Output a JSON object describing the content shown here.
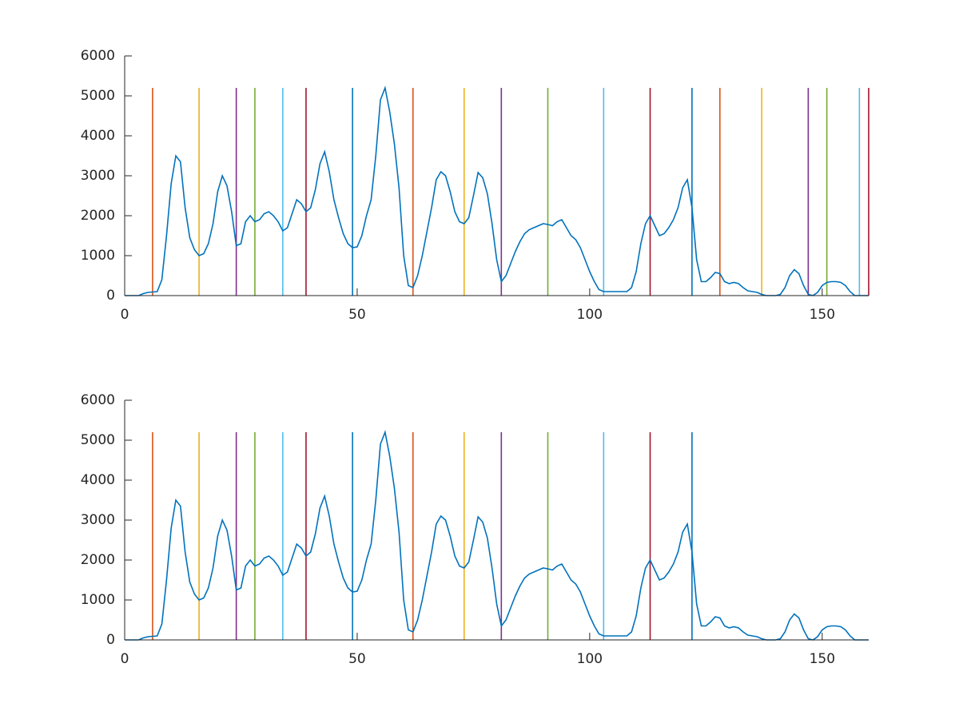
{
  "chart_data": [
    {
      "type": "line",
      "x": [
        0,
        1,
        2,
        3,
        4,
        5,
        6,
        7,
        8,
        9,
        10,
        11,
        12,
        13,
        14,
        15,
        16,
        17,
        18,
        19,
        20,
        21,
        22,
        23,
        24,
        25,
        26,
        27,
        28,
        29,
        30,
        31,
        32,
        33,
        34,
        35,
        36,
        37,
        38,
        39,
        40,
        41,
        42,
        43,
        44,
        45,
        46,
        47,
        48,
        49,
        50,
        51,
        52,
        53,
        54,
        55,
        56,
        57,
        58,
        59,
        60,
        61,
        62,
        63,
        64,
        65,
        66,
        67,
        68,
        69,
        70,
        71,
        72,
        73,
        74,
        75,
        76,
        77,
        78,
        79,
        80,
        81,
        82,
        83,
        84,
        85,
        86,
        87,
        88,
        89,
        90,
        91,
        92,
        93,
        94,
        95,
        96,
        97,
        98,
        99,
        100,
        101,
        102,
        103,
        104,
        105,
        106,
        107,
        108,
        109,
        110,
        111,
        112,
        113,
        114,
        115,
        116,
        117,
        118,
        119,
        120,
        121,
        122,
        123,
        124,
        125,
        126,
        127,
        128,
        129,
        130,
        131,
        132,
        133,
        134,
        135,
        136,
        137,
        138,
        139,
        140,
        141,
        142,
        143,
        144,
        145,
        146,
        147,
        148,
        149,
        150,
        151,
        152,
        153,
        154,
        155,
        156,
        157,
        158,
        159,
        160
      ],
      "series": [
        {
          "color": "#0072BD",
          "values": [
            0,
            0,
            0,
            0,
            50,
            80,
            90,
            100,
            400,
            1500,
            2800,
            3500,
            3350,
            2200,
            1450,
            1150,
            1000,
            1050,
            1300,
            1800,
            2600,
            3000,
            2750,
            2100,
            1250,
            1300,
            1850,
            2000,
            1850,
            1900,
            2050,
            2100,
            2000,
            1850,
            1620,
            1700,
            2050,
            2400,
            2300,
            2100,
            2200,
            2650,
            3300,
            3600,
            3100,
            2400,
            1950,
            1550,
            1300,
            1200,
            1220,
            1500,
            2000,
            2400,
            3500,
            4900,
            5200,
            4600,
            3800,
            2700,
            1000,
            250,
            200,
            500,
            1000,
            1600,
            2200,
            2900,
            3100,
            3000,
            2600,
            2100,
            1850,
            1800,
            1950,
            2500,
            3080,
            2950,
            2550,
            1800,
            900,
            350,
            500,
            800,
            1100,
            1350,
            1550,
            1650,
            1700,
            1750,
            1800,
            1780,
            1750,
            1850,
            1900,
            1700,
            1500,
            1400,
            1200,
            900,
            600,
            350,
            150,
            100,
            100,
            100,
            100,
            100,
            100,
            200,
            600,
            1300,
            1800,
            2000,
            1750,
            1500,
            1550,
            1700,
            1900,
            2200,
            2700,
            2900,
            2200,
            900,
            350,
            350,
            450,
            580,
            550,
            350,
            300,
            330,
            300,
            200,
            120,
            100,
            80,
            30,
            0,
            0,
            0,
            30,
            200,
            500,
            650,
            550,
            250,
            30,
            0,
            80,
            250,
            330,
            350,
            350,
            330,
            250,
            100,
            0,
            0,
            0,
            0
          ]
        }
      ],
      "vlines": {
        "x": [
          6,
          16,
          24,
          28,
          34,
          39,
          49,
          62,
          73,
          81,
          91,
          103,
          113,
          122,
          128,
          137,
          147,
          151,
          158,
          160
        ],
        "colors": [
          "#D95319",
          "#EDB120",
          "#7E2F8E",
          "#77AC30",
          "#4DBEEE",
          "#A2142F",
          "#0072BD",
          "#D95319",
          "#EDB120",
          "#7E2F8E",
          "#77AC30",
          "#4DBEEE",
          "#A2142F",
          "#0072BD",
          "#D95319",
          "#EDB120",
          "#7E2F8E",
          "#77AC30",
          "#4DBEEE",
          "#A2142F"
        ],
        "y_range": [
          0,
          5200
        ]
      },
      "xlim": [
        0,
        160
      ],
      "xticks": [
        0,
        50,
        100,
        150
      ],
      "ylim": [
        0,
        6000
      ],
      "yticks": [
        0,
        1000,
        2000,
        3000,
        4000,
        5000,
        6000
      ]
    },
    {
      "type": "line",
      "x": [
        0,
        1,
        2,
        3,
        4,
        5,
        6,
        7,
        8,
        9,
        10,
        11,
        12,
        13,
        14,
        15,
        16,
        17,
        18,
        19,
        20,
        21,
        22,
        23,
        24,
        25,
        26,
        27,
        28,
        29,
        30,
        31,
        32,
        33,
        34,
        35,
        36,
        37,
        38,
        39,
        40,
        41,
        42,
        43,
        44,
        45,
        46,
        47,
        48,
        49,
        50,
        51,
        52,
        53,
        54,
        55,
        56,
        57,
        58,
        59,
        60,
        61,
        62,
        63,
        64,
        65,
        66,
        67,
        68,
        69,
        70,
        71,
        72,
        73,
        74,
        75,
        76,
        77,
        78,
        79,
        80,
        81,
        82,
        83,
        84,
        85,
        86,
        87,
        88,
        89,
        90,
        91,
        92,
        93,
        94,
        95,
        96,
        97,
        98,
        99,
        100,
        101,
        102,
        103,
        104,
        105,
        106,
        107,
        108,
        109,
        110,
        111,
        112,
        113,
        114,
        115,
        116,
        117,
        118,
        119,
        120,
        121,
        122,
        123,
        124,
        125,
        126,
        127,
        128,
        129,
        130,
        131,
        132,
        133,
        134,
        135,
        136,
        137,
        138,
        139,
        140,
        141,
        142,
        143,
        144,
        145,
        146,
        147,
        148,
        149,
        150,
        151,
        152,
        153,
        154,
        155,
        156,
        157,
        158,
        159,
        160
      ],
      "series": [
        {
          "color": "#0072BD",
          "values": [
            0,
            0,
            0,
            0,
            50,
            80,
            90,
            100,
            400,
            1500,
            2800,
            3500,
            3350,
            2200,
            1450,
            1150,
            1000,
            1050,
            1300,
            1800,
            2600,
            3000,
            2750,
            2100,
            1250,
            1300,
            1850,
            2000,
            1850,
            1900,
            2050,
            2100,
            2000,
            1850,
            1620,
            1700,
            2050,
            2400,
            2300,
            2100,
            2200,
            2650,
            3300,
            3600,
            3100,
            2400,
            1950,
            1550,
            1300,
            1200,
            1220,
            1500,
            2000,
            2400,
            3500,
            4900,
            5200,
            4600,
            3800,
            2700,
            1000,
            250,
            200,
            500,
            1000,
            1600,
            2200,
            2900,
            3100,
            3000,
            2600,
            2100,
            1850,
            1800,
            1950,
            2500,
            3080,
            2950,
            2550,
            1800,
            900,
            350,
            500,
            800,
            1100,
            1350,
            1550,
            1650,
            1700,
            1750,
            1800,
            1780,
            1750,
            1850,
            1900,
            1700,
            1500,
            1400,
            1200,
            900,
            600,
            350,
            150,
            100,
            100,
            100,
            100,
            100,
            100,
            200,
            600,
            1300,
            1800,
            2000,
            1750,
            1500,
            1550,
            1700,
            1900,
            2200,
            2700,
            2900,
            2200,
            900,
            350,
            350,
            450,
            580,
            550,
            350,
            300,
            330,
            300,
            200,
            120,
            100,
            80,
            30,
            0,
            0,
            0,
            30,
            200,
            500,
            650,
            550,
            250,
            30,
            0,
            80,
            250,
            330,
            350,
            350,
            330,
            250,
            100,
            0,
            0,
            0,
            0
          ]
        }
      ],
      "vlines": {
        "x": [
          6,
          16,
          24,
          28,
          34,
          39,
          49,
          62,
          73,
          81,
          91,
          103,
          113,
          122
        ],
        "colors": [
          "#D95319",
          "#EDB120",
          "#7E2F8E",
          "#77AC30",
          "#4DBEEE",
          "#A2142F",
          "#0072BD",
          "#D95319",
          "#EDB120",
          "#7E2F8E",
          "#77AC30",
          "#4DBEEE",
          "#A2142F",
          "#0072BD"
        ],
        "y_range": [
          0,
          5200
        ]
      },
      "xlim": [
        0,
        160
      ],
      "xticks": [
        0,
        50,
        100,
        150
      ],
      "ylim": [
        0,
        6000
      ],
      "yticks": [
        0,
        1000,
        2000,
        3000,
        4000,
        5000,
        6000
      ]
    }
  ]
}
